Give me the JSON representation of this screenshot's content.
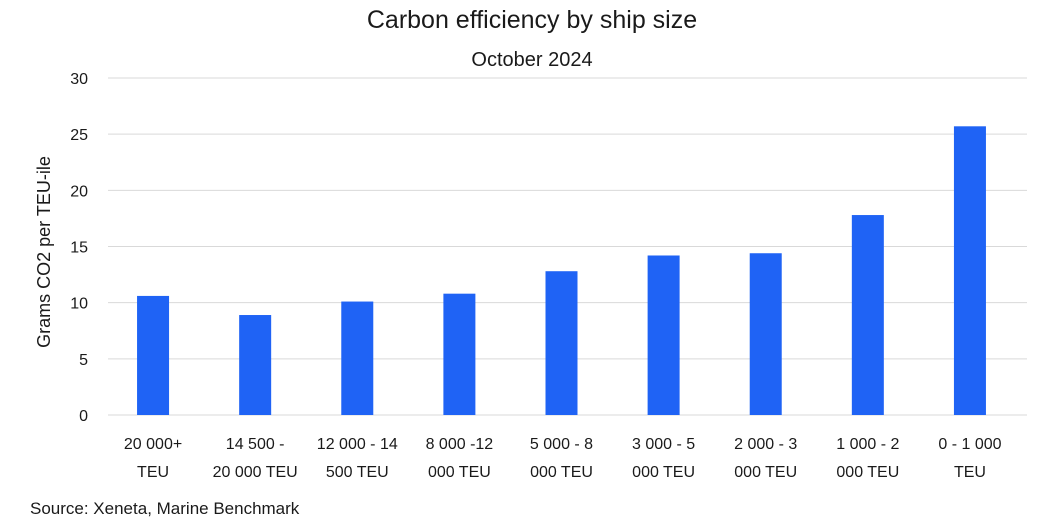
{
  "chart_data": {
    "type": "bar",
    "title": "Carbon efficiency by ship size",
    "subtitle": "October 2024",
    "xlabel": "",
    "ylabel": "Grams CO2 per TEU-ile",
    "ylim": [
      0,
      30
    ],
    "yticks": [
      0,
      5,
      10,
      15,
      20,
      25,
      30
    ],
    "grid": true,
    "legend": "none",
    "categories": [
      [
        "20 000+",
        "TEU"
      ],
      [
        "14 500 -",
        "20 000 TEU"
      ],
      [
        "12 000 - 14",
        "500 TEU"
      ],
      [
        "8 000 -12",
        "000 TEU"
      ],
      [
        "5 000 - 8",
        "000 TEU"
      ],
      [
        "3 000 - 5",
        "000 TEU"
      ],
      [
        "2 000 - 3",
        "000 TEU"
      ],
      [
        "1 000 - 2",
        "000 TEU"
      ],
      [
        "0 - 1 000",
        "TEU"
      ]
    ],
    "values": [
      10.6,
      8.9,
      10.1,
      10.8,
      12.8,
      14.2,
      14.4,
      17.8,
      25.7
    ],
    "bar_color": "#1f63f5",
    "source": "Source: Xeneta, Marine Benchmark"
  }
}
